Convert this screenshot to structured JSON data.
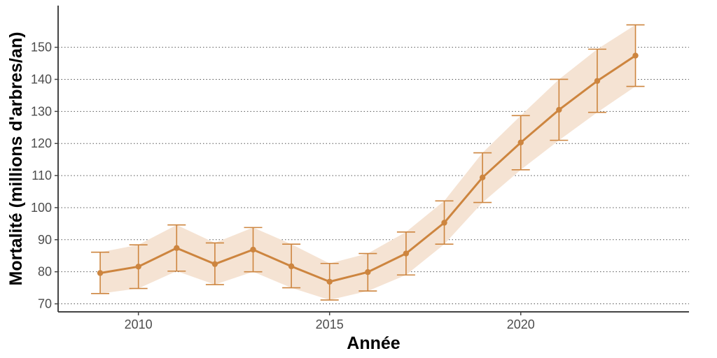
{
  "chart_data": {
    "type": "line",
    "title": "",
    "xlabel": "Année",
    "ylabel": "Mortalité (millions d'arbres/an)",
    "x": [
      2009,
      2010,
      2011,
      2012,
      2013,
      2014,
      2015,
      2016,
      2017,
      2018,
      2019,
      2020,
      2021,
      2022,
      2023
    ],
    "series": [
      {
        "values": [
          79.6,
          81.6,
          87.4,
          82.4,
          86.9,
          81.7,
          76.9,
          79.9,
          85.7,
          95.3,
          109.4,
          120.3,
          130.5,
          139.5,
          147.4
        ],
        "lower": [
          73.2,
          74.8,
          80.2,
          76.0,
          80.0,
          75.0,
          71.2,
          74.0,
          79.0,
          88.6,
          101.6,
          111.8,
          121.0,
          129.7,
          137.8
        ],
        "upper": [
          86.1,
          88.4,
          94.6,
          89.0,
          93.8,
          88.6,
          82.6,
          85.7,
          92.4,
          102.1,
          117.1,
          128.7,
          140.0,
          149.4,
          157.0
        ]
      }
    ],
    "xlim": [
      2007.9,
      2024.4
    ],
    "ylim": [
      67.5,
      163
    ],
    "xticks": [
      2010,
      2015,
      2020
    ],
    "yticks": [
      70,
      80,
      90,
      100,
      110,
      120,
      130,
      140,
      150
    ],
    "grid": "horizontal dotted",
    "legend": "none",
    "colors": {
      "line": "#CD853F",
      "band": "#F5E3D3",
      "grid": "#555555",
      "axis": "#444444"
    }
  }
}
